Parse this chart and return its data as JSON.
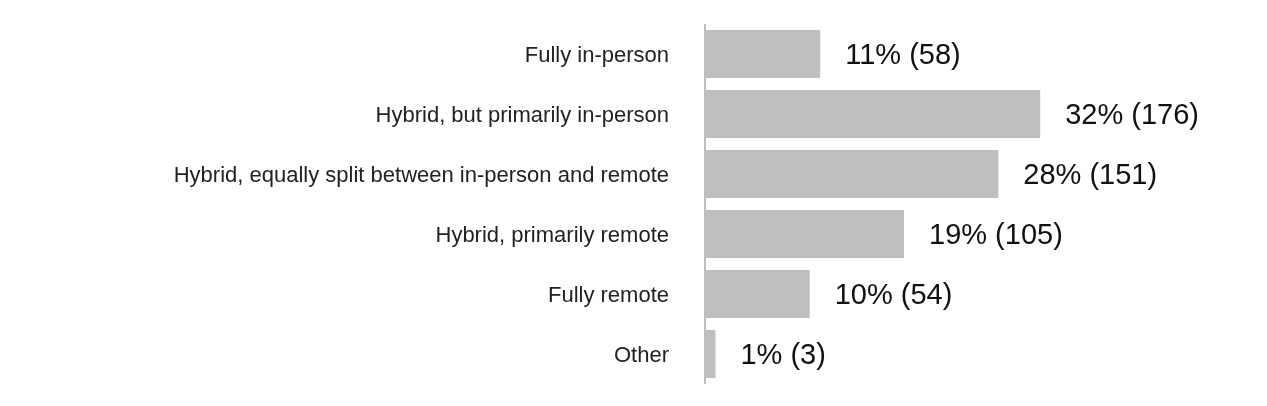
{
  "chart_data": {
    "type": "bar",
    "orientation": "horizontal",
    "categories": [
      "Fully in-person",
      "Hybrid, but primarily in-person",
      "Hybrid, equally split between in-person and remote",
      "Hybrid, primarily remote",
      "Fully remote",
      "Other"
    ],
    "values": [
      11,
      32,
      28,
      19,
      10,
      1
    ],
    "value_labels": [
      "11% (58)",
      "32% (176)",
      "28% (151)",
      "19% (105)",
      "10% (54)",
      "1% (3)"
    ],
    "color": "#bfbfbf",
    "grid": false,
    "legend": false
  }
}
